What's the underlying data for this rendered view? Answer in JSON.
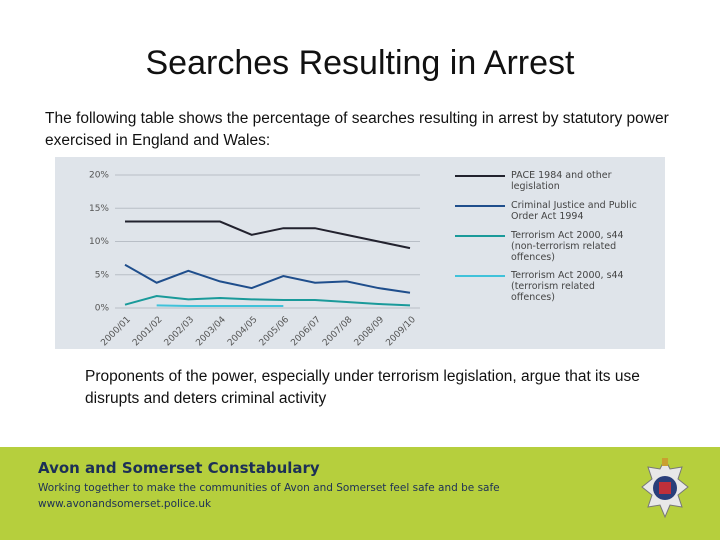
{
  "title": "Searches Resulting in Arrest",
  "intro": "The following table shows the percentage of searches resulting in arrest by statutory power exercised in England and Wales:",
  "chart_data": {
    "type": "line",
    "categories": [
      "2000/01",
      "2001/02",
      "2002/03",
      "2003/04",
      "2004/05",
      "2005/06",
      "2006/07",
      "2007/08",
      "2008/09",
      "2009/10"
    ],
    "series": [
      {
        "name": "PACE 1984 and other legislation",
        "color": "#22222e",
        "values": [
          13,
          13,
          13,
          13,
          11,
          12,
          12,
          11,
          10,
          9
        ]
      },
      {
        "name": "Criminal Justice and Public Order Act 1994",
        "color": "#1f4e8c",
        "values": [
          6.5,
          3.8,
          5.6,
          4,
          3,
          4.8,
          3.8,
          4,
          3,
          2.3
        ]
      },
      {
        "name": "Terrorism Act 2000, s44 (non-terrorism related offences)",
        "color": "#1a9a9a",
        "values": [
          0.5,
          1.8,
          1.3,
          1.5,
          1.3,
          1.2,
          1.2,
          0.9,
          0.6,
          0.4
        ]
      },
      {
        "name": "Terrorism Act 2000, s44 (terrorism related offences)",
        "color": "#40c2da",
        "values": [
          null,
          0.4,
          0.3,
          0.3,
          0.3,
          0.3,
          null,
          null,
          null,
          null
        ]
      }
    ],
    "ylim": [
      0,
      20
    ],
    "yticks": [
      {
        "value": 0,
        "label": "0%"
      },
      {
        "value": 5,
        "label": "5%"
      },
      {
        "value": 10,
        "label": "10%"
      },
      {
        "value": 15,
        "label": "15%"
      },
      {
        "value": 20,
        "label": "20%"
      }
    ],
    "grid": true
  },
  "body": "Proponents of the power, especially under terrorism legislation, argue that its use disrupts and deters criminal activity",
  "footer": {
    "organization": "Avon and Somerset Constabulary",
    "tagline": "Working together to make the communities of Avon and Somerset feel safe and be safe",
    "website": "www.avonandsomerset.police.uk"
  }
}
